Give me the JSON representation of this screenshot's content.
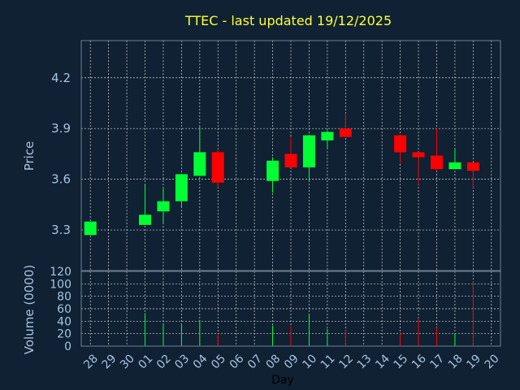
{
  "chart_data": {
    "type": "candlestick",
    "title": "TTEC - last updated 19/12/2025",
    "ylabel": "Price",
    "volume_ylabel": "Volume (0000)",
    "xlabel": "Day",
    "ylim": [
      3.06,
      4.42
    ],
    "yticks": [
      3.3,
      3.6,
      3.9,
      4.2
    ],
    "volume_ylim": [
      0,
      120
    ],
    "volume_yticks": [
      0,
      20,
      40,
      60,
      80,
      100,
      120
    ],
    "grid": true,
    "colors": {
      "up": "#00ff33",
      "down": "#ff0000",
      "title": "#ffff33",
      "axis": "#a9c3dd",
      "grid": "#d8d8d8"
    },
    "x_labels": [
      "28",
      "29",
      "30",
      "01",
      "02",
      "03",
      "04",
      "05",
      "06",
      "07",
      "08",
      "09",
      "10",
      "11",
      "12",
      "13",
      "14",
      "15",
      "16",
      "17",
      "18",
      "19",
      "20"
    ],
    "candles": [
      {
        "i": 0,
        "open": 3.27,
        "high": 3.35,
        "low": 3.27,
        "close": 3.35,
        "volume": 0
      },
      {
        "i": 3,
        "open": 3.33,
        "high": 3.57,
        "low": 3.33,
        "close": 3.39,
        "volume": 53
      },
      {
        "i": 4,
        "open": 3.41,
        "high": 3.55,
        "low": 3.34,
        "close": 3.47,
        "volume": 37
      },
      {
        "i": 5,
        "open": 3.47,
        "high": 3.63,
        "low": 3.43,
        "close": 3.63,
        "volume": 36
      },
      {
        "i": 6,
        "open": 3.62,
        "high": 3.91,
        "low": 3.62,
        "close": 3.76,
        "volume": 42
      },
      {
        "i": 7,
        "open": 3.76,
        "high": 3.78,
        "low": 3.55,
        "close": 3.58,
        "volume": 20
      },
      {
        "i": 10,
        "open": 3.59,
        "high": 3.73,
        "low": 3.52,
        "close": 3.71,
        "volume": 33
      },
      {
        "i": 11,
        "open": 3.75,
        "high": 3.85,
        "low": 3.67,
        "close": 3.67,
        "volume": 32
      },
      {
        "i": 12,
        "open": 3.67,
        "high": 3.86,
        "low": 3.59,
        "close": 3.86,
        "volume": 52
      },
      {
        "i": 13,
        "open": 3.83,
        "high": 3.89,
        "low": 3.78,
        "close": 3.88,
        "volume": 28
      },
      {
        "i": 14,
        "open": 3.9,
        "high": 3.99,
        "low": 3.85,
        "close": 3.85,
        "volume": 27
      },
      {
        "i": 17,
        "open": 3.86,
        "high": 3.86,
        "low": 3.69,
        "close": 3.76,
        "volume": 22
      },
      {
        "i": 18,
        "open": 3.76,
        "high": 3.76,
        "low": 3.57,
        "close": 3.73,
        "volume": 43
      },
      {
        "i": 19,
        "open": 3.74,
        "high": 3.9,
        "low": 3.65,
        "close": 3.66,
        "volume": 30
      },
      {
        "i": 20,
        "open": 3.66,
        "high": 3.78,
        "low": 3.66,
        "close": 3.7,
        "volume": 20
      },
      {
        "i": 21,
        "open": 3.7,
        "high": 3.7,
        "low": 3.55,
        "close": 3.65,
        "volume": 104
      }
    ]
  }
}
